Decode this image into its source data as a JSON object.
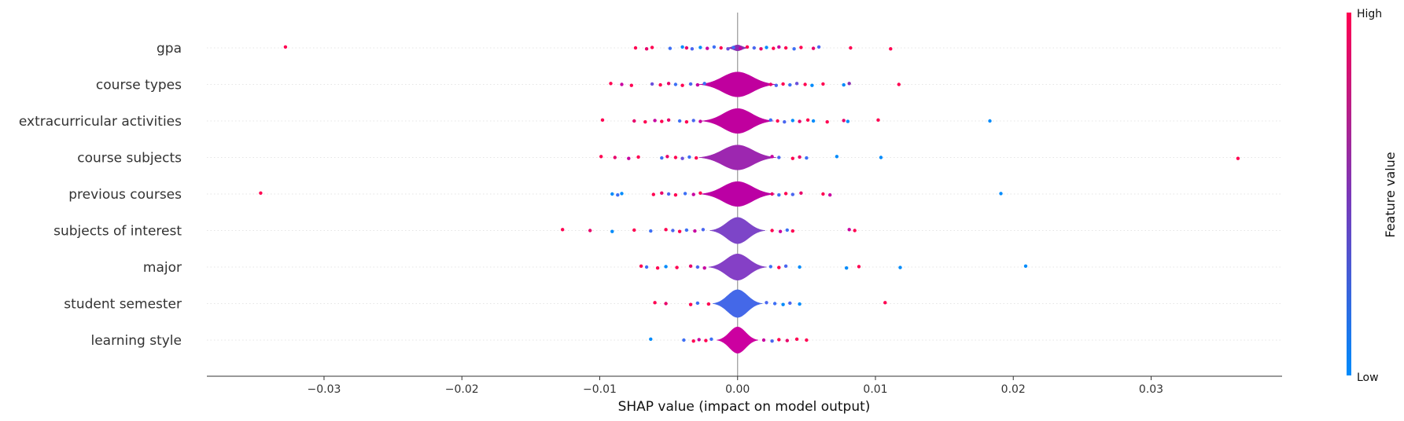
{
  "chart_data": {
    "type": "violin",
    "title": "",
    "xlabel": "SHAP value (impact on model output)",
    "ylabel": "",
    "xlim": [
      -0.0385,
      0.0395
    ],
    "xticks": [
      {
        "value": -0.03,
        "label": "−0.03"
      },
      {
        "value": -0.02,
        "label": "−0.02"
      },
      {
        "value": -0.01,
        "label": "−0.01"
      },
      {
        "value": 0.0,
        "label": "0.00"
      },
      {
        "value": 0.01,
        "label": "0.01"
      },
      {
        "value": 0.02,
        "label": "0.02"
      },
      {
        "value": 0.03,
        "label": "0.03"
      }
    ],
    "grid": false,
    "colorbar": {
      "label": "Feature value",
      "high_label": "High",
      "low_label": "Low",
      "high_color": "#ff0051",
      "mid_color": "#7b37b8",
      "low_color": "#008bfb"
    },
    "features": [
      {
        "name": "gpa",
        "violin": {
          "width": 0.0008,
          "half_height": 0.08,
          "mean_color": "#8a2fb0"
        },
        "points": [
          [
            -0.0328,
            "#ff0051"
          ],
          [
            -0.0074,
            "#ff0051"
          ],
          [
            -0.0066,
            "#e8006a"
          ],
          [
            -0.0062,
            "#ff0051"
          ],
          [
            -0.0049,
            "#3d6ff5"
          ],
          [
            -0.004,
            "#008bfb"
          ],
          [
            -0.0037,
            "#e8006a"
          ],
          [
            -0.0033,
            "#4a66f0"
          ],
          [
            -0.0027,
            "#008bfb"
          ],
          [
            -0.0022,
            "#c800a0"
          ],
          [
            -0.0017,
            "#3d6ff5"
          ],
          [
            -0.0012,
            "#ff0051"
          ],
          [
            -0.0007,
            "#6a50dc"
          ],
          [
            -0.0003,
            "#3d6ff5"
          ],
          [
            0.0002,
            "#c800a0"
          ],
          [
            0.0007,
            "#ff0051"
          ],
          [
            0.0012,
            "#4a66f0"
          ],
          [
            0.0017,
            "#e8006a"
          ],
          [
            0.0021,
            "#008bfb"
          ],
          [
            0.0026,
            "#ff0051"
          ],
          [
            0.003,
            "#c800a0"
          ],
          [
            0.0035,
            "#ff0051"
          ],
          [
            0.0041,
            "#3d6ff5"
          ],
          [
            0.0046,
            "#ff0051"
          ],
          [
            0.0055,
            "#e8006a"
          ],
          [
            0.0059,
            "#4a66f0"
          ],
          [
            0.0082,
            "#ff0051"
          ],
          [
            0.0111,
            "#ff0051"
          ]
        ]
      },
      {
        "name": "course types",
        "violin": {
          "width": 0.0028,
          "half_height": 0.34,
          "mean_color": "#c0009e"
        },
        "points": [
          [
            -0.0092,
            "#ff0051"
          ],
          [
            -0.0084,
            "#c800a0"
          ],
          [
            -0.0077,
            "#ff0051"
          ],
          [
            -0.0062,
            "#6a50dc"
          ],
          [
            -0.0056,
            "#ff0051"
          ],
          [
            -0.005,
            "#e8006a"
          ],
          [
            -0.0045,
            "#3d6ff5"
          ],
          [
            -0.004,
            "#ff0051"
          ],
          [
            -0.0034,
            "#4a66f0"
          ],
          [
            -0.0029,
            "#c800a0"
          ],
          [
            -0.0024,
            "#3d6ff5"
          ],
          [
            0.0024,
            "#e8006a"
          ],
          [
            0.0028,
            "#4a66f0"
          ],
          [
            0.0033,
            "#ff0051"
          ],
          [
            0.0038,
            "#3d6ff5"
          ],
          [
            0.0043,
            "#6a50dc"
          ],
          [
            0.0049,
            "#ff0051"
          ],
          [
            0.0054,
            "#008bfb"
          ],
          [
            0.0062,
            "#ff0051"
          ],
          [
            0.0077,
            "#008bfb"
          ],
          [
            0.0081,
            "#8a2fb0"
          ],
          [
            0.0117,
            "#ff0051"
          ]
        ]
      },
      {
        "name": "extracurricular activities",
        "violin": {
          "width": 0.0026,
          "half_height": 0.34,
          "mean_color": "#c0009e"
        },
        "points": [
          [
            -0.0098,
            "#ff0051"
          ],
          [
            -0.0075,
            "#e8006a"
          ],
          [
            -0.0067,
            "#ff0051"
          ],
          [
            -0.006,
            "#c800a0"
          ],
          [
            -0.0055,
            "#ff0051"
          ],
          [
            -0.005,
            "#e8006a"
          ],
          [
            -0.0042,
            "#3d6ff5"
          ],
          [
            -0.0037,
            "#ff0051"
          ],
          [
            -0.0032,
            "#4a66f0"
          ],
          [
            -0.0027,
            "#c800a0"
          ],
          [
            0.0024,
            "#3d6ff5"
          ],
          [
            0.0029,
            "#ff0051"
          ],
          [
            0.0034,
            "#4a66f0"
          ],
          [
            0.004,
            "#008bfb"
          ],
          [
            0.0045,
            "#e8006a"
          ],
          [
            0.0051,
            "#ff0051"
          ],
          [
            0.0055,
            "#008bfb"
          ],
          [
            0.0065,
            "#ff0051"
          ],
          [
            0.0077,
            "#e8006a"
          ],
          [
            0.008,
            "#008bfb"
          ],
          [
            0.0102,
            "#ff0051"
          ],
          [
            0.0183,
            "#008bfb"
          ]
        ]
      },
      {
        "name": "course subjects",
        "violin": {
          "width": 0.0028,
          "half_height": 0.34,
          "mean_color": "#9d27b0"
        },
        "points": [
          [
            -0.0099,
            "#ff0051"
          ],
          [
            -0.0089,
            "#e8006a"
          ],
          [
            -0.0079,
            "#c800a0"
          ],
          [
            -0.0072,
            "#ff0051"
          ],
          [
            -0.0055,
            "#3d6ff5"
          ],
          [
            -0.0051,
            "#e8006a"
          ],
          [
            -0.0045,
            "#ff0051"
          ],
          [
            -0.004,
            "#6a50dc"
          ],
          [
            -0.0035,
            "#3d6ff5"
          ],
          [
            -0.003,
            "#ff0051"
          ],
          [
            0.0025,
            "#c800a0"
          ],
          [
            0.003,
            "#4a66f0"
          ],
          [
            0.004,
            "#ff0051"
          ],
          [
            0.0045,
            "#e8006a"
          ],
          [
            0.005,
            "#3d6ff5"
          ],
          [
            0.0072,
            "#008bfb"
          ],
          [
            0.0104,
            "#008bfb"
          ],
          [
            0.0363,
            "#ff0051"
          ]
        ]
      },
      {
        "name": "previous courses",
        "violin": {
          "width": 0.0027,
          "half_height": 0.34,
          "mean_color": "#bb00a4"
        },
        "points": [
          [
            -0.0346,
            "#ff0051"
          ],
          [
            -0.0091,
            "#008bfb"
          ],
          [
            -0.0087,
            "#3d6ff5"
          ],
          [
            -0.0084,
            "#008bfb"
          ],
          [
            -0.0061,
            "#ff0051"
          ],
          [
            -0.0055,
            "#e8006a"
          ],
          [
            -0.005,
            "#4a66f0"
          ],
          [
            -0.0045,
            "#ff0051"
          ],
          [
            -0.0038,
            "#3d6ff5"
          ],
          [
            -0.0032,
            "#c800a0"
          ],
          [
            -0.0027,
            "#ff0051"
          ],
          [
            0.0025,
            "#e8006a"
          ],
          [
            0.003,
            "#3d6ff5"
          ],
          [
            0.0035,
            "#ff0051"
          ],
          [
            0.004,
            "#4a66f0"
          ],
          [
            0.0046,
            "#e8006a"
          ],
          [
            0.0062,
            "#ff0051"
          ],
          [
            0.0067,
            "#c800a0"
          ],
          [
            0.0191,
            "#008bfb"
          ]
        ]
      },
      {
        "name": "subjects of interest",
        "violin": {
          "width": 0.002,
          "half_height": 0.36,
          "mean_color": "#7d45c8"
        },
        "points": [
          [
            -0.0127,
            "#ff0051"
          ],
          [
            -0.0107,
            "#e8006a"
          ],
          [
            -0.0091,
            "#008bfb"
          ],
          [
            -0.0075,
            "#ff0051"
          ],
          [
            -0.0063,
            "#3d6ff5"
          ],
          [
            -0.0052,
            "#ff0051"
          ],
          [
            -0.0047,
            "#4a66f0"
          ],
          [
            -0.0042,
            "#ff0051"
          ],
          [
            -0.0037,
            "#3d6ff5"
          ],
          [
            -0.0031,
            "#c800a0"
          ],
          [
            -0.0025,
            "#4a66f0"
          ],
          [
            0.0025,
            "#ff0051"
          ],
          [
            0.0031,
            "#c800a0"
          ],
          [
            0.0036,
            "#3d6ff5"
          ],
          [
            0.004,
            "#ff0051"
          ],
          [
            0.0081,
            "#c800a0"
          ],
          [
            0.0085,
            "#ff0051"
          ]
        ]
      },
      {
        "name": "major",
        "violin": {
          "width": 0.0021,
          "half_height": 0.36,
          "mean_color": "#8540c6"
        },
        "points": [
          [
            -0.007,
            "#ff0051"
          ],
          [
            -0.0066,
            "#3d6ff5"
          ],
          [
            -0.0058,
            "#ff0051"
          ],
          [
            -0.0052,
            "#008bfb"
          ],
          [
            -0.0044,
            "#ff0051"
          ],
          [
            -0.0034,
            "#e8006a"
          ],
          [
            -0.0029,
            "#4a66f0"
          ],
          [
            -0.0024,
            "#c800a0"
          ],
          [
            0.0024,
            "#3d6ff5"
          ],
          [
            0.003,
            "#ff0051"
          ],
          [
            0.0035,
            "#4a66f0"
          ],
          [
            0.0045,
            "#008bfb"
          ],
          [
            0.0079,
            "#008bfb"
          ],
          [
            0.0088,
            "#ff0051"
          ],
          [
            0.0118,
            "#008bfb"
          ],
          [
            0.0209,
            "#008bfb"
          ]
        ]
      },
      {
        "name": "student semester",
        "violin": {
          "width": 0.0018,
          "half_height": 0.38,
          "mean_color": "#4468e8"
        },
        "points": [
          [
            -0.006,
            "#ff0051"
          ],
          [
            -0.0052,
            "#e8006a"
          ],
          [
            -0.0034,
            "#ff0051"
          ],
          [
            -0.0029,
            "#3d6ff5"
          ],
          [
            -0.0021,
            "#ff0051"
          ],
          [
            0.0021,
            "#4a66f0"
          ],
          [
            0.0027,
            "#3d6ff5"
          ],
          [
            0.0033,
            "#008bfb"
          ],
          [
            0.0038,
            "#4a66f0"
          ],
          [
            0.0045,
            "#008bfb"
          ],
          [
            0.0107,
            "#ff0051"
          ]
        ]
      },
      {
        "name": "learning style",
        "violin": {
          "width": 0.0015,
          "half_height": 0.36,
          "mean_color": "#cc00a0"
        },
        "points": [
          [
            -0.0063,
            "#008bfb"
          ],
          [
            -0.0039,
            "#3d6ff5"
          ],
          [
            -0.0032,
            "#ff0051"
          ],
          [
            -0.0028,
            "#c800a0"
          ],
          [
            -0.0023,
            "#ff0051"
          ],
          [
            -0.0019,
            "#3d6ff5"
          ],
          [
            0.0019,
            "#c800a0"
          ],
          [
            0.0025,
            "#4a66f0"
          ],
          [
            0.003,
            "#ff0051"
          ],
          [
            0.0036,
            "#e8006a"
          ],
          [
            0.0043,
            "#ff0051"
          ],
          [
            0.005,
            "#ff0051"
          ]
        ]
      }
    ]
  }
}
